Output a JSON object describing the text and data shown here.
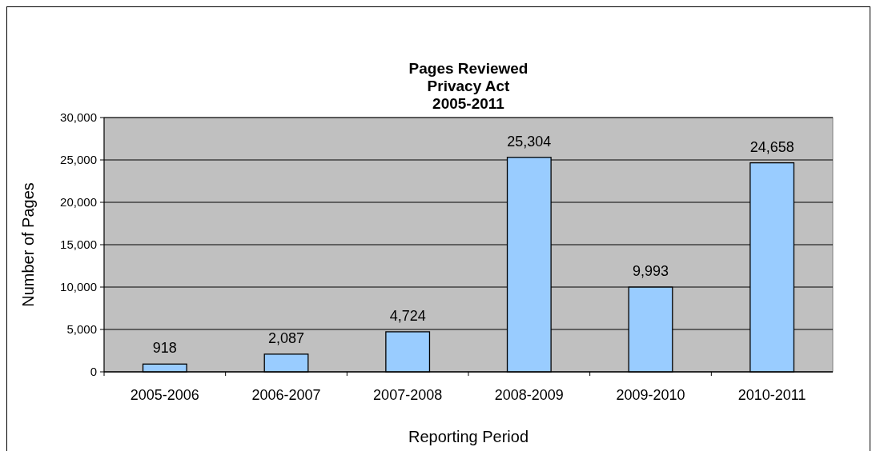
{
  "chart_data": {
    "type": "bar",
    "title": "Pages Reviewed\nPrivacy Act\n2005-2011",
    "xlabel": "Reporting Period",
    "ylabel": "Number of Pages",
    "categories": [
      "2005-2006",
      "2006-2007",
      "2007-2008",
      "2008-2009",
      "2009-2010",
      "2010-2011"
    ],
    "values": [
      918,
      2087,
      4724,
      25304,
      9993,
      24658
    ],
    "color": "#99ccff",
    "ylim": [
      0,
      30000
    ],
    "yticks": [
      {
        "value": 0,
        "label": "0"
      },
      {
        "value": 5000,
        "label": "5,000"
      },
      {
        "value": 10000,
        "label": "10,000"
      },
      {
        "value": 15000,
        "label": "15,000"
      },
      {
        "value": 20000,
        "label": "20,000"
      },
      {
        "value": 25000,
        "label": "25,000"
      },
      {
        "value": 30000,
        "label": "30,000"
      }
    ],
    "grid": "y",
    "value_labels": [
      "918",
      "2,087",
      "4,724",
      "25,304",
      "9,993",
      "24,658"
    ]
  }
}
